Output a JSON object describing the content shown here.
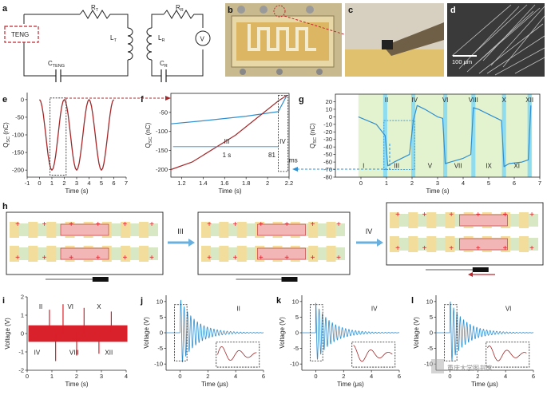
{
  "panels": {
    "a": "a",
    "b": "b",
    "c": "c",
    "d": "d",
    "e": "e",
    "f": "f",
    "g": "g",
    "h": "h",
    "i": "i",
    "j": "j",
    "k": "k",
    "l": "l"
  },
  "circuit": {
    "teng": "TENG",
    "rt": "R",
    "rt_sub": "T",
    "lt": "L",
    "lt_sub": "T",
    "cteng": "C",
    "cteng_sub": "TENG",
    "lr": "L",
    "lr_sub": "R",
    "rr": "R",
    "rr_sub": "R",
    "cr": "C",
    "cr_sub": "R",
    "v": "V"
  },
  "photo_d": {
    "scale_label": "100 μm"
  },
  "colors": {
    "dark_red": "#a4282a",
    "blue": "#2f8fd0",
    "green_bg": "#e4f3cf",
    "cyan_band": "#8fdcef",
    "pink": "#f2b6b6",
    "tan": "#f3dd9c",
    "red_plot": "#d9212b"
  },
  "chart_data": [
    {
      "panel": "e",
      "type": "line",
      "ylabel": "Q",
      "ylabel_sub": "SC",
      "ylabel_unit": "(nC)",
      "xlabel": "Time (s)",
      "xlim": [
        -1,
        7
      ],
      "ylim": [
        -220,
        20
      ],
      "xticks": [
        -1,
        0,
        1,
        2,
        3,
        4,
        5,
        6,
        7
      ],
      "yticks": [
        0,
        -50,
        -100,
        -150,
        -200
      ],
      "series": [
        {
          "name": "Q_SC",
          "x": [
            0,
            1,
            2,
            3,
            4,
            5,
            6
          ],
          "y": [
            0,
            -200,
            0,
            -200,
            0,
            -200,
            0
          ]
        }
      ]
    },
    {
      "panel": "f",
      "type": "line",
      "ylabel": "Q",
      "ylabel_sub": "SC",
      "ylabel_unit": "(nC)",
      "xlabel": "Time (s)",
      "xlim": [
        1.1,
        2.2
      ],
      "ylim": [
        -220,
        0
      ],
      "xticks": [
        1.2,
        1.4,
        1.6,
        1.8,
        2.0,
        2.2
      ],
      "yticks": [
        -50,
        -100,
        -150,
        -200
      ],
      "series": [
        {
          "name": "blue",
          "x": [
            1.1,
            1.4,
            1.8,
            2.1,
            2.18
          ],
          "y": [
            -80,
            -72,
            -60,
            -48,
            -5
          ]
        },
        {
          "name": "red",
          "x": [
            1.1,
            1.3,
            1.7,
            2.1,
            2.18
          ],
          "y": [
            -200,
            -180,
            -110,
            -20,
            -5
          ]
        }
      ],
      "annotations": {
        "phase_a": "III",
        "phase_b": "IV",
        "dur_a": "1 s",
        "dur_b": "81",
        "dur_b_unit": "ms"
      }
    },
    {
      "panel": "g",
      "type": "line",
      "ylabel": "Q",
      "ylabel_sub": "SC",
      "ylabel_unit": "(nC)",
      "xlabel": "Time (s)",
      "xlim": [
        -1,
        7
      ],
      "ylim": [
        -80,
        30
      ],
      "xticks": [
        0,
        1,
        2,
        3,
        4,
        5,
        6,
        7
      ],
      "yticks": [
        20,
        10,
        0,
        -10,
        -20,
        -30,
        -40,
        -50,
        -60,
        -70,
        -80
      ],
      "series": [
        {
          "name": "Q_SC",
          "x": [
            -0.1,
            0.6,
            0.95,
            1.05,
            1.3,
            1.9,
            2.05,
            2.2,
            2.5,
            3.0,
            3.2,
            3.3,
            3.5,
            4.0,
            4.3,
            4.4,
            4.6,
            5.2,
            5.5,
            5.6,
            5.8,
            6.3,
            6.55,
            6.65
          ],
          "y": [
            0,
            -10,
            -25,
            -65,
            -60,
            -50,
            -5,
            15,
            10,
            0,
            -2,
            -62,
            -60,
            -55,
            -50,
            12,
            10,
            0,
            -5,
            -66,
            -62,
            -60,
            -57,
            15
          ]
        }
      ],
      "phases_top": [
        "II",
        "IV",
        "VI",
        "VIII",
        "X",
        "XII"
      ],
      "phases_bottom": [
        "I",
        "III",
        "V",
        "VII",
        "IX",
        "XI"
      ]
    },
    {
      "panel": "i",
      "type": "line",
      "ylabel": "Voltage (V)",
      "xlabel": "Time (s)",
      "xlim": [
        0,
        4
      ],
      "ylim": [
        -2,
        2
      ],
      "xticks": [
        0,
        1,
        2,
        3,
        4
      ],
      "yticks": [
        2,
        1,
        0,
        -1,
        -2
      ],
      "labels": [
        "II",
        "VI",
        "X",
        "IV",
        "VIII",
        "XII"
      ]
    },
    {
      "panel": "j",
      "type": "line",
      "ylabel": "Voltage (V)",
      "xlabel": "Time (μs)",
      "xlim": [
        -1,
        6
      ],
      "ylim": [
        -12,
        12
      ],
      "xticks": [
        0,
        2,
        4,
        6
      ],
      "yticks": [
        10,
        5,
        0,
        -5,
        -10
      ],
      "phase": "II"
    },
    {
      "panel": "k",
      "type": "line",
      "ylabel": "Voltage (V)",
      "xlabel": "Time (μs)",
      "xlim": [
        -1,
        6
      ],
      "ylim": [
        -12,
        12
      ],
      "xticks": [
        0,
        2,
        4,
        6
      ],
      "yticks": [
        10,
        5,
        0,
        -5,
        -10
      ],
      "phase": "IV"
    },
    {
      "panel": "l",
      "type": "line",
      "ylabel": "Voltage (V)",
      "xlabel": "Time (μs)",
      "xlim": [
        -1,
        6
      ],
      "ylim": [
        -12,
        12
      ],
      "xticks": [
        0,
        2,
        4,
        6
      ],
      "yticks": [
        10,
        5,
        0,
        -5,
        -10
      ],
      "phase": "VI"
    }
  ],
  "diagram_h": {
    "step1": "III",
    "step2": "IV"
  },
  "watermark": "重庆大学图书馆"
}
